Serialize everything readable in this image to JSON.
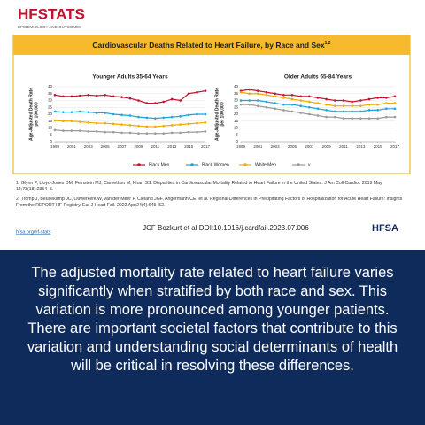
{
  "header": {
    "logo": "HFSTATS",
    "logo_sub": "EPIDEMIOLOGY AND OUTCOMES",
    "title": "Cardiovascular Deaths Related to Heart Failure, by Race and Sex",
    "title_note": "1,2"
  },
  "chart_data": [
    {
      "type": "line",
      "title": "Younger Adults 35-64 Years",
      "ylabel": [
        "Age-Adjusted Death Rate",
        "per 100,000"
      ],
      "x": [
        1999,
        2000,
        2001,
        2002,
        2003,
        2004,
        2005,
        2006,
        2007,
        2008,
        2009,
        2010,
        2011,
        2012,
        2013,
        2014,
        2015,
        2016,
        2017
      ],
      "xlim": [
        1999,
        2017
      ],
      "xticks": [
        1999,
        2001,
        2003,
        2005,
        2007,
        2009,
        2011,
        2013,
        2015,
        2017
      ],
      "ylim": [
        0,
        40
      ],
      "yticks": [
        0,
        5,
        10,
        15,
        20,
        25,
        30,
        35,
        40
      ],
      "grid": true,
      "series": [
        {
          "name": "Black Men",
          "color": "#c8102e",
          "values": [
            34,
            33,
            33,
            33.5,
            34,
            33.5,
            34,
            33,
            32.5,
            31.5,
            30,
            28,
            28,
            29,
            31,
            30,
            35,
            36,
            37
          ]
        },
        {
          "name": "Black Women",
          "color": "#1fa3dc",
          "values": [
            22,
            21.5,
            21.5,
            22,
            21.5,
            21,
            21,
            20,
            19.5,
            19,
            18,
            17.5,
            17,
            17.5,
            18,
            18.5,
            19.5,
            20,
            20
          ]
        },
        {
          "name": "White Men",
          "color": "#f2a900",
          "values": [
            15.5,
            15,
            15,
            14.5,
            14,
            13.5,
            13.5,
            13,
            12.5,
            12,
            11.5,
            11,
            11,
            11.5,
            12,
            12.5,
            13,
            13.5,
            14
          ]
        },
        {
          "name": "v",
          "color": "#9a9a9a",
          "values": [
            8.5,
            8,
            8,
            8,
            7.5,
            7.5,
            7,
            7,
            6.5,
            6.5,
            6,
            6,
            6,
            6,
            6.5,
            6.5,
            7,
            7,
            7.5
          ]
        }
      ]
    },
    {
      "type": "line",
      "title": "Older Adults 65-84 Years",
      "ylabel": [
        "Age-Adjusted Death Rate",
        "per 100,000"
      ],
      "x": [
        1999,
        2000,
        2001,
        2002,
        2003,
        2004,
        2005,
        2006,
        2007,
        2008,
        2009,
        2010,
        2011,
        2012,
        2013,
        2014,
        2015,
        2016,
        2017
      ],
      "xlim": [
        1999,
        2017
      ],
      "xticks": [
        1999,
        2001,
        2003,
        2005,
        2007,
        2009,
        2011,
        2013,
        2015,
        2017
      ],
      "ylim": [
        0,
        40
      ],
      "yticks": [
        0,
        5,
        10,
        15,
        20,
        25,
        30,
        35,
        40
      ],
      "grid": true,
      "series": [
        {
          "color": "#c8102e",
          "values": [
            37,
            38,
            37,
            36,
            35,
            34,
            34,
            33,
            33,
            32,
            31,
            30,
            30,
            29,
            30,
            31,
            32,
            32,
            33
          ]
        },
        {
          "color": "#1fa3dc",
          "values": [
            30,
            30,
            30,
            29,
            28,
            27,
            27,
            26,
            25,
            24,
            23,
            22,
            22,
            22,
            22,
            23,
            23,
            24,
            24
          ]
        },
        {
          "color": "#f2a900",
          "values": [
            36,
            35,
            35,
            34,
            33,
            32,
            31,
            30,
            29,
            28,
            27,
            26,
            26,
            26,
            26,
            27,
            27,
            28,
            28
          ]
        },
        {
          "color": "#9a9a9a",
          "values": [
            27,
            27,
            26,
            25,
            24,
            23,
            22,
            21,
            20,
            19,
            18,
            18,
            17,
            17,
            17,
            17,
            17,
            18,
            18
          ]
        }
      ]
    }
  ],
  "footnotes": [
    "1. Glynn P, Lloyd-Jones DM, Feinstein MJ, Carnethon M, Khan SS. Disparities in Cardiovascular Mortality Related to Heart Failure in the United States. J Am Coll Cardiol. 2019 May 14;73(18):2354–5.",
    "2. Tromp J, Beusekamp JC, Ouwerkerk W, van der Meer P, Cleland JGF, Angermann CE, et al. Regional Differences in Precipitating Factors of Hospitalization for Acute Heart Failure: Insights From the REPORT-HF Registry. Eur J Heart Fail. 2022 Apr;24(4):645–52."
  ],
  "link": "hfsa.org/hf-stats",
  "citation": "JCF Bozkurt et al DOI:10.1016/j.cardfail.2023.07.006",
  "org_logo": "HFSA",
  "message": "The adjusted mortality rate related to heart failure varies significantly when stratified by both race and sex. This variation is more pronounced among younger patients. There are important societal factors that contribute to this variation and understanding social determinants of health will be critical in resolving these differences."
}
